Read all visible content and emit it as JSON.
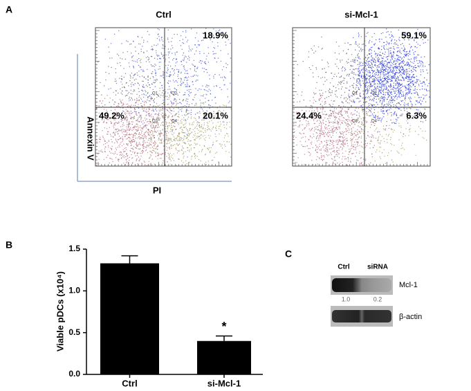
{
  "panel_a": {
    "label": "A",
    "y_axis_label": "Annexin V",
    "x_axis_label": "PI",
    "plots": [
      {
        "title": "Ctrl",
        "q1": "Q1",
        "q2": "Q2",
        "q3": "Q3",
        "q4": "Q4",
        "upper_right": "18.9%",
        "lower_left": "49.2%",
        "lower_right": "20.1%"
      },
      {
        "title": "si-Mcl-1",
        "q1": "Q1",
        "q2": "Q2",
        "q3": "Q3",
        "q4": "Q4",
        "upper_right": "59.1%",
        "lower_left": "24.4%",
        "lower_right": "6.3%"
      }
    ]
  },
  "panel_b_label": "B",
  "chart_data": {
    "type": "bar",
    "ylabel": "Viable pDCs (x10⁴)",
    "categories": [
      "Ctrl",
      "si-Mcl-1"
    ],
    "values": [
      1.33,
      0.4
    ],
    "errors": [
      0.09,
      0.06
    ],
    "color": "#000000",
    "annotation": "*",
    "ylim": [
      0,
      1.5
    ],
    "yticks": [
      {
        "value": 0,
        "label": "0.0"
      },
      0.5,
      {
        "value": 1,
        "label": "1.0"
      },
      1.5
    ]
  },
  "panel_c": {
    "label": "C",
    "lanes": [
      "Ctrl",
      "siRNA"
    ],
    "rows": [
      {
        "name": "Mcl-1",
        "quant": [
          "1.0",
          "0.2"
        ]
      },
      {
        "name": "β-actin"
      }
    ]
  }
}
